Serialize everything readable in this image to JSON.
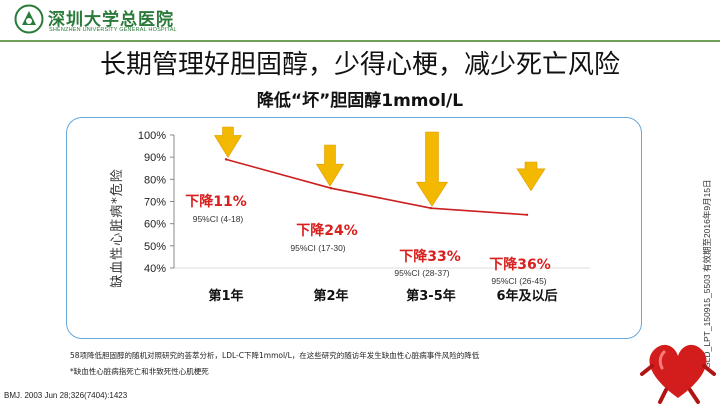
{
  "header": {
    "logo_cn": "深圳大学总医院",
    "logo_en": "SHENZHEN UNIVERSITY GENERAL HOSPITAL",
    "title": "长期管理好胆固醇，少得心梗，减少死亡风险",
    "subtitle": "降低“坏”胆固醇1mmol/L",
    "side_code": "SLD_LPT_150915_5503 有效期至2016年9月15日"
  },
  "chart_data": {
    "type": "line",
    "ylabel": "缺血性心脏病*危险",
    "yticks": [
      "100%",
      "90%",
      "80%",
      "70%",
      "60%",
      "50%",
      "40%"
    ],
    "ylim": [
      40,
      100
    ],
    "categories": [
      "第1年",
      "第2年",
      "第3-5年",
      "6年及以后"
    ],
    "values": [
      89,
      76,
      67,
      64
    ],
    "annotations": [
      {
        "label": "下降11%",
        "ci": "95%CI (4-18)"
      },
      {
        "label": "下降24%",
        "ci": "95%CI (17-30)"
      },
      {
        "label": "下降33%",
        "ci": "95%CI (28-37)"
      },
      {
        "label": "下降36%",
        "ci": "95%CI (26-45)"
      }
    ],
    "line_color": "#cc1f1f",
    "arrow_color": "#f3b800",
    "label_color": "#d8201e"
  },
  "footnotes": {
    "note1": "58项降低胆固醇的随机对照研究的荟萃分析，LDL-C下降1mmol/L，在这些研究的随访年发生缺血性心脏病事件风险的降低",
    "note2": "*缺血性心脏病指死亡和非致死性心肌梗死",
    "reference": "BMJ. 2003 Jun 28;326(7404):1423"
  }
}
